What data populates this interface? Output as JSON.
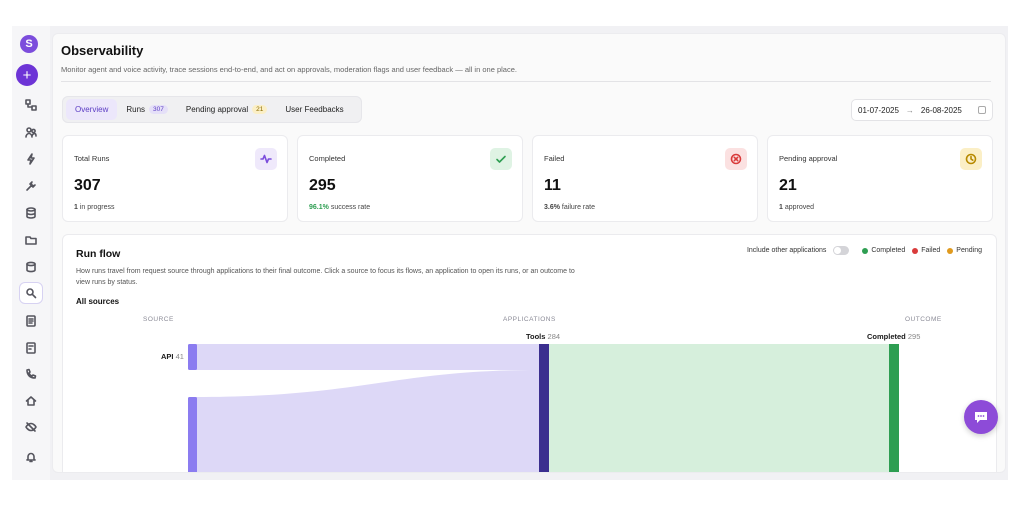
{
  "app": {
    "logo_letter": "S",
    "new_button_label": "+",
    "rail_icons": [
      "workflow-icon",
      "agents-icon",
      "bolt-icon",
      "tools-icon",
      "database-icon",
      "folder-icon",
      "storage-icon",
      "observability-icon",
      "reports-icon",
      "documents-icon",
      "phone-icon",
      "home-icon",
      "eye-off-icon",
      "bell-icon"
    ],
    "active_rail_icon": "observability-icon",
    "accent_color": "#6d34d6"
  },
  "header": {
    "title": "Observability",
    "subtitle": "Monitor agent and voice activity, trace sessions end-to-end, and act on approvals, moderation flags and user feedback — all in one place."
  },
  "tabs": [
    {
      "label": "Overview",
      "count": null,
      "active": true
    },
    {
      "label": "Runs",
      "count": "307",
      "active": false
    },
    {
      "label": "Pending approval",
      "count": "21",
      "active": false
    },
    {
      "label": "User Feedbacks",
      "count": null,
      "active": false
    }
  ],
  "date_range": {
    "from": "01-07-2025",
    "arrow": "→",
    "to": "26-08-2025"
  },
  "cards": [
    {
      "label": "Total Runs",
      "value": "307",
      "foot_highlight": "1",
      "foot_text": "in progress",
      "icon": "activity-icon",
      "icon_bg": "#efe9fb",
      "icon_color": "#7c4ddc",
      "highlight_color": "#444444"
    },
    {
      "label": "Completed",
      "value": "295",
      "foot_highlight": "96.1%",
      "foot_text": "success rate",
      "icon": "check-icon",
      "icon_bg": "#dff3e4",
      "icon_color": "#2e9e52",
      "highlight_color": "#2e9e52"
    },
    {
      "label": "Failed",
      "value": "11",
      "foot_highlight": "3.6%",
      "foot_text": "failure rate",
      "icon": "x-circle-icon",
      "icon_bg": "#fbe1e1",
      "icon_color": "#d93b3b",
      "highlight_color": "#444444"
    },
    {
      "label": "Pending approval",
      "value": "21",
      "foot_highlight": "1",
      "foot_text": "approved",
      "icon": "clock-icon",
      "icon_bg": "#fbefc6",
      "icon_color": "#b78a00",
      "highlight_color": "#444444"
    }
  ],
  "run_flow": {
    "title": "Run flow",
    "description": "How runs travel from request source through applications to their final outcome. Click a source to focus its flows, an application to open its runs, or an outcome to view runs by status.",
    "scope": "All sources",
    "toggle_label": "Include other applications",
    "legend": [
      {
        "label": "Completed",
        "color": "#2e9e52"
      },
      {
        "label": "Failed",
        "color": "#d93b3b"
      },
      {
        "label": "Pending",
        "color": "#e09a1e"
      }
    ],
    "columns": [
      "SOURCE",
      "APPLICATIONS",
      "OUTCOME"
    ],
    "nodes": {
      "source": {
        "label": "API",
        "count": "41"
      },
      "application": {
        "label": "Tools",
        "count": "284"
      },
      "outcome": {
        "label": "Completed",
        "count": "295"
      }
    },
    "colors": {
      "source_node": "#8b7cf0",
      "app_node": "#3b2f8f",
      "outcome_node": "#2e9e52",
      "source_flow": "#ddd8f7",
      "outcome_flow": "#d6efdc"
    }
  }
}
